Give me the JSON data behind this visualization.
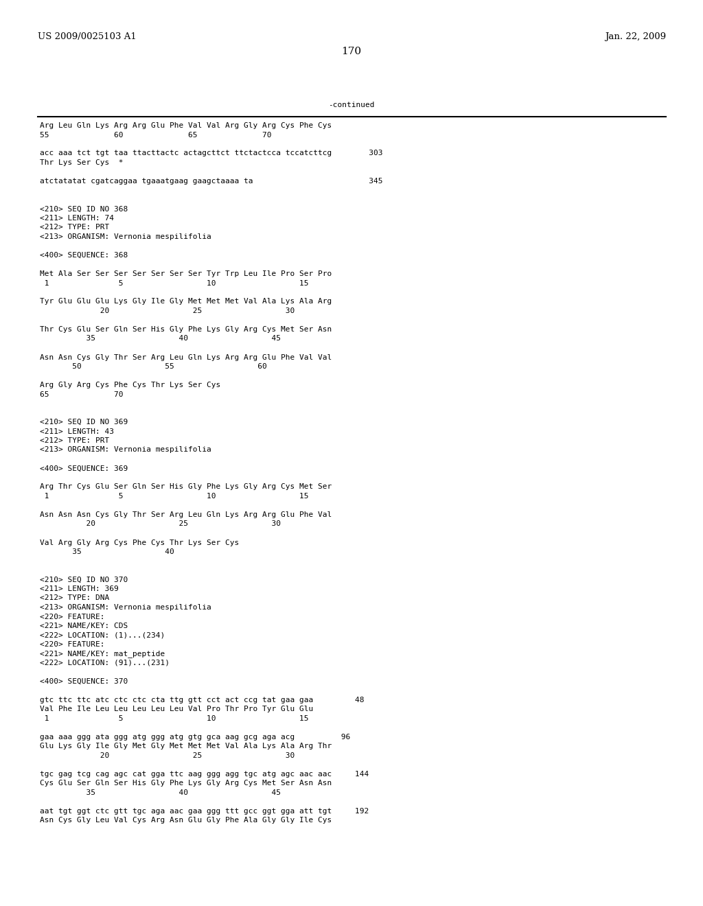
{
  "header_left": "US 2009/0025103 A1",
  "header_right": "Jan. 22, 2009",
  "page_number": "170",
  "continued_label": "-continued",
  "background_color": "#ffffff",
  "text_color": "#000000",
  "font_size": 8.0,
  "header_font_size": 9.5,
  "page_num_font_size": 11,
  "lines": [
    {
      "text": "Arg Leu Gln Lys Arg Arg Glu Phe Val Val Arg Gly Arg Cys Phe Cys"
    },
    {
      "text": "55              60              65              70"
    },
    {
      "text": ""
    },
    {
      "text": "acc aaa tct tgt taa ttacttactc actagcttct ttctactcca tccatcttcg        303"
    },
    {
      "text": "Thr Lys Ser Cys  *"
    },
    {
      "text": ""
    },
    {
      "text": "atctatatat cgatcaggaa tgaaatgaag gaagctaaaa ta                         345"
    },
    {
      "text": ""
    },
    {
      "text": ""
    },
    {
      "text": "<210> SEQ ID NO 368"
    },
    {
      "text": "<211> LENGTH: 74"
    },
    {
      "text": "<212> TYPE: PRT"
    },
    {
      "text": "<213> ORGANISM: Vernonia mespilifolia"
    },
    {
      "text": ""
    },
    {
      "text": "<400> SEQUENCE: 368"
    },
    {
      "text": ""
    },
    {
      "text": "Met Ala Ser Ser Ser Ser Ser Ser Ser Tyr Trp Leu Ile Pro Ser Pro"
    },
    {
      "text": " 1               5                  10                  15"
    },
    {
      "text": ""
    },
    {
      "text": "Tyr Glu Glu Glu Lys Gly Ile Gly Met Met Met Val Ala Lys Ala Arg"
    },
    {
      "text": "             20                  25                  30"
    },
    {
      "text": ""
    },
    {
      "text": "Thr Cys Glu Ser Gln Ser His Gly Phe Lys Gly Arg Cys Met Ser Asn"
    },
    {
      "text": "          35                  40                  45"
    },
    {
      "text": ""
    },
    {
      "text": "Asn Asn Cys Gly Thr Ser Arg Leu Gln Lys Arg Arg Glu Phe Val Val"
    },
    {
      "text": "       50                  55                  60"
    },
    {
      "text": ""
    },
    {
      "text": "Arg Gly Arg Cys Phe Cys Thr Lys Ser Cys"
    },
    {
      "text": "65              70"
    },
    {
      "text": ""
    },
    {
      "text": ""
    },
    {
      "text": "<210> SEQ ID NO 369"
    },
    {
      "text": "<211> LENGTH: 43"
    },
    {
      "text": "<212> TYPE: PRT"
    },
    {
      "text": "<213> ORGANISM: Vernonia mespilifolia"
    },
    {
      "text": ""
    },
    {
      "text": "<400> SEQUENCE: 369"
    },
    {
      "text": ""
    },
    {
      "text": "Arg Thr Cys Glu Ser Gln Ser His Gly Phe Lys Gly Arg Cys Met Ser"
    },
    {
      "text": " 1               5                  10                  15"
    },
    {
      "text": ""
    },
    {
      "text": "Asn Asn Asn Cys Gly Thr Ser Arg Leu Gln Lys Arg Arg Glu Phe Val"
    },
    {
      "text": "          20                  25                  30"
    },
    {
      "text": ""
    },
    {
      "text": "Val Arg Gly Arg Cys Phe Cys Thr Lys Ser Cys"
    },
    {
      "text": "       35                  40"
    },
    {
      "text": ""
    },
    {
      "text": ""
    },
    {
      "text": "<210> SEQ ID NO 370"
    },
    {
      "text": "<211> LENGTH: 369"
    },
    {
      "text": "<212> TYPE: DNA"
    },
    {
      "text": "<213> ORGANISM: Vernonia mespilifolia"
    },
    {
      "text": "<220> FEATURE:"
    },
    {
      "text": "<221> NAME/KEY: CDS"
    },
    {
      "text": "<222> LOCATION: (1)...(234)"
    },
    {
      "text": "<220> FEATURE:"
    },
    {
      "text": "<221> NAME/KEY: mat_peptide"
    },
    {
      "text": "<222> LOCATION: (91)...(231)"
    },
    {
      "text": ""
    },
    {
      "text": "<400> SEQUENCE: 370"
    },
    {
      "text": ""
    },
    {
      "text": "gtc ttc ttc atc ctc ctc cta ttg gtt cct act ccg tat gaa gaa         48"
    },
    {
      "text": "Val Phe Ile Leu Leu Leu Leu Leu Val Pro Thr Pro Tyr Glu Glu"
    },
    {
      "text": " 1               5                  10                  15"
    },
    {
      "text": ""
    },
    {
      "text": "gaa aaa ggg ata ggg atg ggg atg gtg gca aag gcg aga acg          96"
    },
    {
      "text": "Glu Lys Gly Ile Gly Met Gly Met Met Met Val Ala Lys Ala Arg Thr"
    },
    {
      "text": "             20                  25                  30"
    },
    {
      "text": ""
    },
    {
      "text": "tgc gag tcg cag agc cat gga ttc aag ggg agg tgc atg agc aac aac     144"
    },
    {
      "text": "Cys Glu Ser Gln Ser His Gly Phe Lys Gly Arg Cys Met Ser Asn Asn"
    },
    {
      "text": "          35                  40                  45"
    },
    {
      "text": ""
    },
    {
      "text": "aat tgt ggt ctc gtt tgc aga aac gaa ggg ttt gcc ggt gga att tgt     192"
    },
    {
      "text": "Asn Cys Gly Leu Val Cys Arg Asn Glu Gly Phe Ala Gly Gly Ile Cys"
    }
  ]
}
